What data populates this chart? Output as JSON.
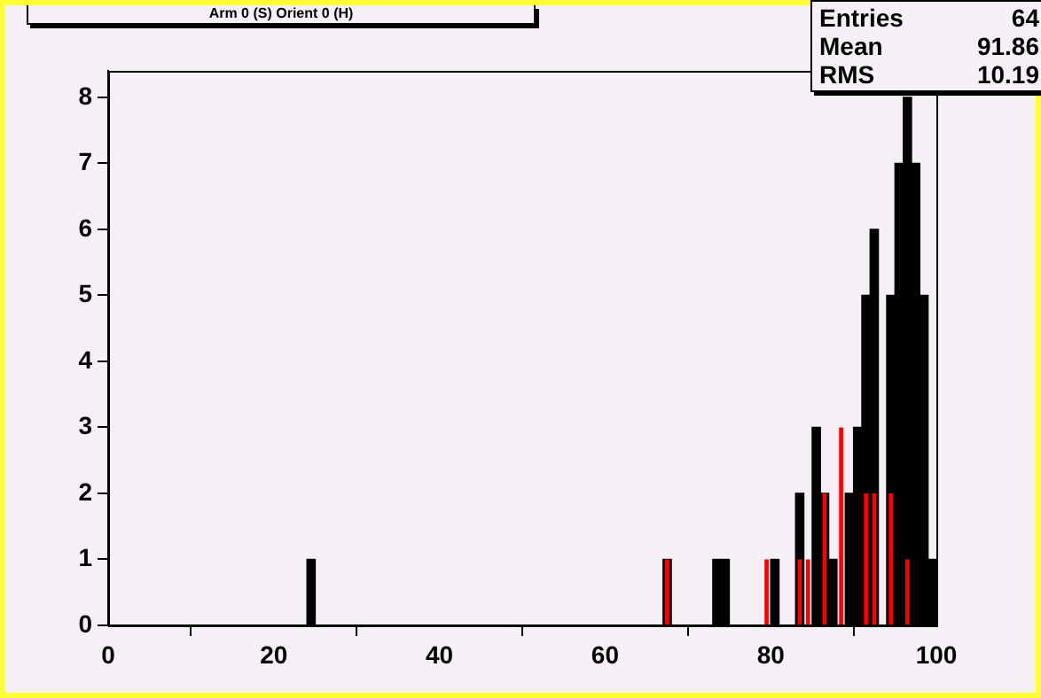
{
  "chart_data": {
    "type": "histogram",
    "title": "Arm 0 (S) Orient 0 (H)",
    "bins": [
      0,
      1,
      2,
      3,
      4,
      5,
      6,
      7,
      8,
      9,
      10,
      11,
      12,
      13,
      14,
      15,
      16,
      17,
      18,
      19,
      20,
      21,
      22,
      23,
      24,
      25,
      26,
      27,
      28,
      29,
      30,
      31,
      32,
      33,
      34,
      35,
      36,
      37,
      38,
      39,
      40,
      41,
      42,
      43,
      44,
      45,
      46,
      47,
      48,
      49,
      50,
      51,
      52,
      53,
      54,
      55,
      56,
      57,
      58,
      59,
      60,
      61,
      62,
      63,
      64,
      65,
      66,
      67,
      68,
      69,
      70,
      71,
      72,
      73,
      74,
      75,
      76,
      77,
      78,
      79,
      80,
      81,
      82,
      83,
      84,
      85,
      86,
      87,
      88,
      89,
      90,
      91,
      92,
      93,
      94,
      95,
      96,
      97,
      98,
      99,
      100
    ],
    "series": [
      {
        "color": "#000000",
        "values": [
          0,
          0,
          0,
          0,
          0,
          0,
          0,
          0,
          0,
          0,
          0,
          0,
          0,
          0,
          0,
          0,
          0,
          0,
          0,
          0,
          0,
          0,
          0,
          0,
          1,
          0,
          0,
          0,
          0,
          0,
          0,
          0,
          0,
          0,
          0,
          0,
          0,
          0,
          0,
          0,
          0,
          0,
          0,
          0,
          0,
          0,
          0,
          0,
          0,
          0,
          0,
          0,
          0,
          0,
          0,
          0,
          0,
          0,
          0,
          0,
          0,
          0,
          0,
          0,
          0,
          0,
          0,
          1,
          0,
          0,
          0,
          0,
          0,
          1,
          1,
          0,
          0,
          0,
          0,
          null,
          1,
          0,
          0,
          2,
          null,
          3,
          2,
          1,
          null,
          2,
          3,
          5,
          6,
          0,
          5,
          7,
          8,
          7,
          5,
          1
        ]
      },
      {
        "color": "#ff0000",
        "values": [
          0,
          0,
          0,
          0,
          0,
          0,
          0,
          0,
          0,
          0,
          0,
          0,
          0,
          0,
          0,
          0,
          0,
          0,
          0,
          0,
          0,
          0,
          0,
          0,
          0,
          0,
          0,
          0,
          0,
          0,
          0,
          0,
          0,
          0,
          0,
          0,
          0,
          0,
          0,
          0,
          0,
          0,
          0,
          0,
          0,
          0,
          0,
          0,
          0,
          0,
          0,
          0,
          0,
          0,
          0,
          0,
          0,
          0,
          0,
          0,
          0,
          0,
          0,
          0,
          0,
          0,
          0,
          1,
          0,
          0,
          0,
          0,
          0,
          0,
          0,
          0,
          0,
          0,
          0,
          1,
          0,
          0,
          0,
          1,
          1,
          0,
          2,
          0,
          3,
          0,
          0,
          2,
          2,
          0,
          2,
          0,
          1,
          0,
          0,
          0
        ]
      }
    ],
    "xlim": [
      0,
      100
    ],
    "xticks": [
      0,
      20,
      40,
      60,
      80,
      100
    ],
    "ylim": [
      0,
      8.4
    ],
    "yticks": [
      0,
      1,
      2,
      3,
      4,
      5,
      6,
      7,
      8
    ],
    "annotations": [
      "Entries 64",
      "Mean 91.86",
      "RMS 10.19"
    ]
  }
}
